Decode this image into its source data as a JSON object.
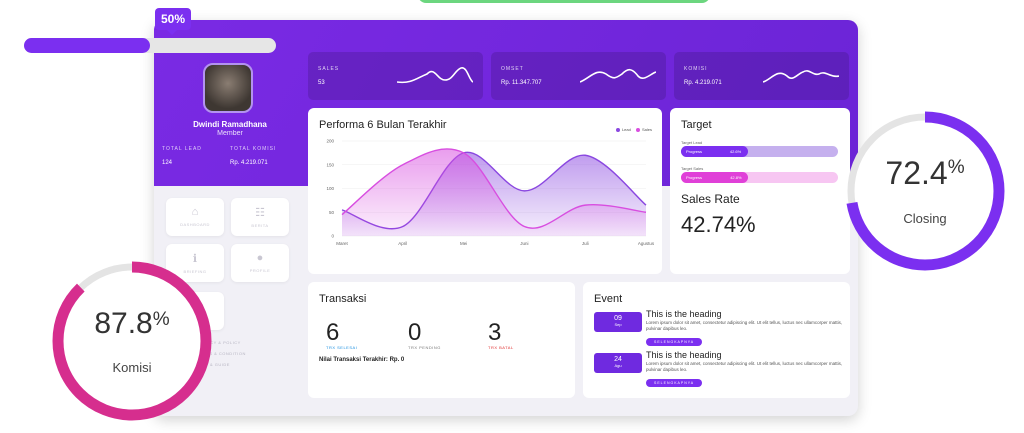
{
  "top_progress": {
    "label": "50%",
    "value": 0.5
  },
  "profile": {
    "name": "Dwindi Ramadhana",
    "role": "Member",
    "stats": [
      {
        "label": "TOTAL LEAD",
        "value": "124"
      },
      {
        "label": "TOTAL KOMISI",
        "value": "Rp. 4.219.071"
      }
    ]
  },
  "nav": [
    {
      "label": "DASHBOARD",
      "icon": "home-icon"
    },
    {
      "label": "BERITA",
      "icon": "news-icon"
    },
    {
      "label": "BRIEFING",
      "icon": "info-icon"
    },
    {
      "label": "PROFILE",
      "icon": "user-icon"
    }
  ],
  "side_links": [
    "PRIVACY & POLICY",
    "TERMS & CONDITION",
    "HELP & GUIDE"
  ],
  "stat_cards": [
    {
      "title": "SALES",
      "value": "53"
    },
    {
      "title": "OMSET",
      "value": "Rp. 11.347.707"
    },
    {
      "title": "KOMISI",
      "value": "Rp. 4.219.071"
    }
  ],
  "performance": {
    "title": "Performa 6 Bulan Terakhir",
    "legend": [
      "Lead",
      "Sales"
    ]
  },
  "chart_data": {
    "type": "area",
    "categories": [
      "Maret",
      "April",
      "Mei",
      "Juni",
      "Juli",
      "Agustus"
    ],
    "yticks": [
      0,
      50,
      100,
      150,
      200
    ],
    "ylim": [
      0,
      200
    ],
    "series": [
      {
        "name": "Lead",
        "color": "#8a47e0",
        "values": [
          55,
          20,
          175,
          95,
          170,
          65
        ]
      },
      {
        "name": "Sales",
        "color": "#d84ee0",
        "values": [
          45,
          150,
          175,
          20,
          65,
          50
        ]
      }
    ],
    "grid": true,
    "legend": "top-right"
  },
  "target": {
    "title": "Target",
    "bars": [
      {
        "label": "Target Lead",
        "inner": "Progress",
        "pct": "42.6%",
        "value": 0.426,
        "track": "#c5b0ee",
        "color": "#7b2ff0"
      },
      {
        "label": "Target Sales",
        "inner": "Progress",
        "pct": "42.8%",
        "value": 0.428,
        "track": "#f7c6f2",
        "color": "#e040d8"
      }
    ],
    "rate_label": "Sales Rate",
    "rate_value": "42.74%"
  },
  "transaksi": {
    "title": "Transaksi",
    "items": [
      {
        "num": "6",
        "label": "TRX SELESAI",
        "color": "#1a8fe0"
      },
      {
        "num": "0",
        "label": "TRX PENDING",
        "color": "#777777"
      },
      {
        "num": "3",
        "label": "TRX BATAL",
        "color": "#e03030"
      }
    ],
    "note": "Nilai Transaksi Terakhir: Rp. 0"
  },
  "event": {
    "title": "Event",
    "items": [
      {
        "day": "09",
        "month": "Sep",
        "heading": "This is the heading",
        "text": "Lorem ipsum dolor sit amet, consectetur adipiscing elit. Ut elit tellus, luctus nec ullamcorper mattis, pulvinar dapibus leo.",
        "button": "SELENGKAPNYA"
      },
      {
        "day": "24",
        "month": "Agu",
        "heading": "This is the heading",
        "text": "Lorem ipsum dolor sit amet, consectetur adipiscing elit. Ut elit tellus, luctus nec ullamcorper mattis, pulvinar dapibus leo.",
        "button": "SELENGKAPNYA"
      }
    ]
  },
  "rings": {
    "closing": {
      "number": "72.4",
      "symbol": "%",
      "caption": "Closing",
      "value": 0.724,
      "color": "#7b2ff0"
    },
    "komisi": {
      "number": "87.8",
      "symbol": "%",
      "caption": "Komisi",
      "value": 0.878,
      "color": "#d62e8e"
    }
  }
}
